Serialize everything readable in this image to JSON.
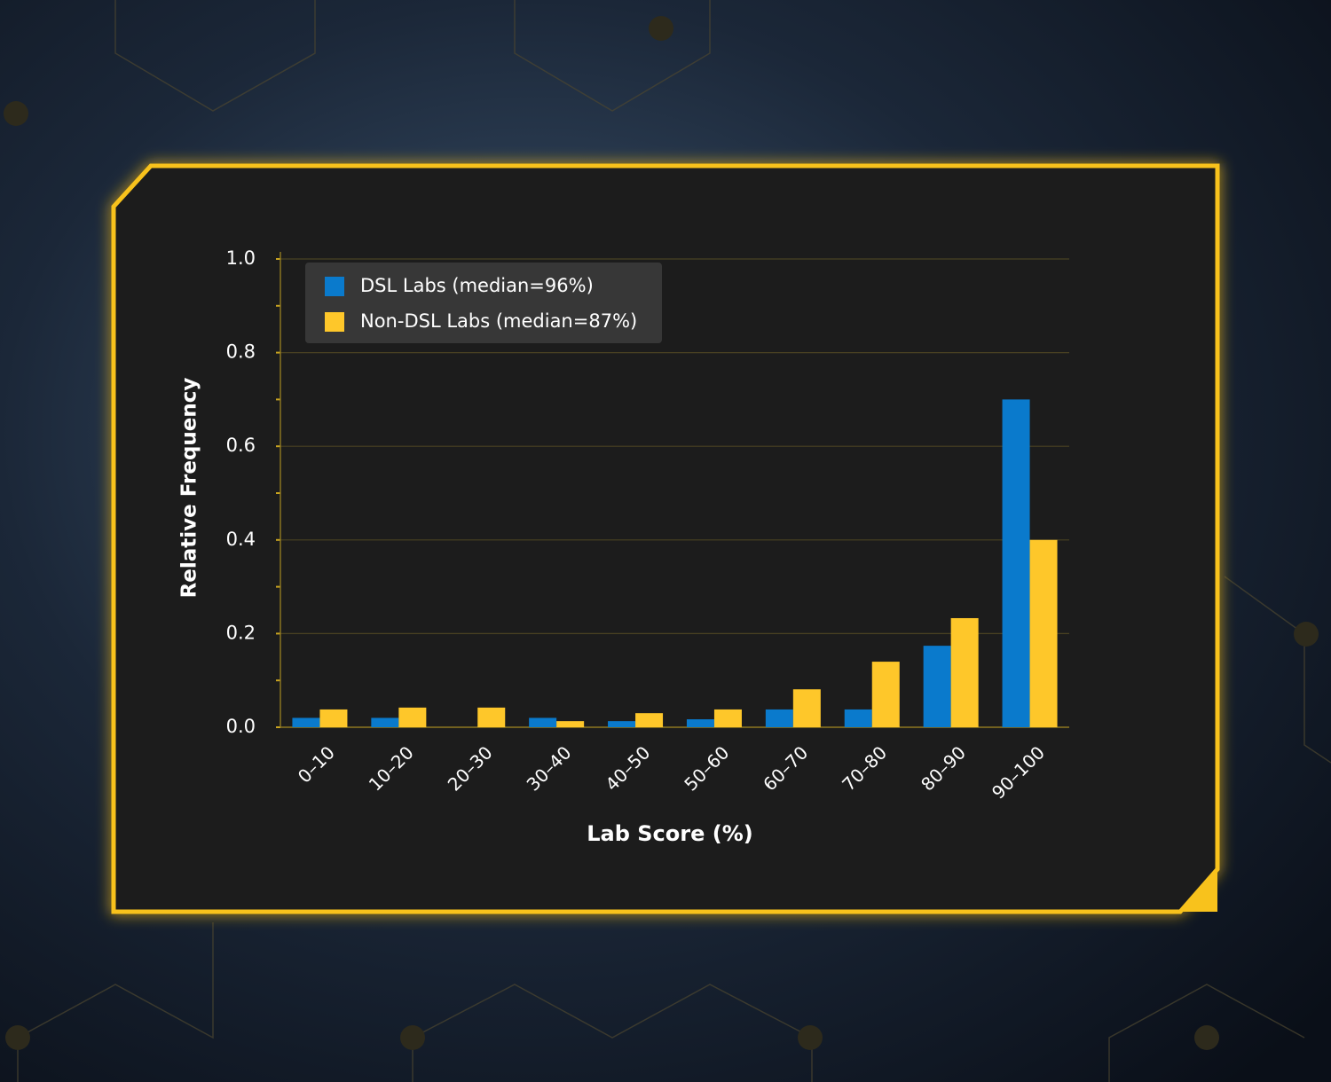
{
  "chart_data": {
    "type": "bar",
    "x_label": "Lab Score (%)",
    "y_label": "Relative Frequency",
    "categories": [
      "0–10",
      "10–20",
      "20–30",
      "30–40",
      "40–50",
      "50–60",
      "60–70",
      "70–80",
      "80–90",
      "90–100"
    ],
    "series": [
      {
        "name": "DSL Labs (median=96%)",
        "color": "#0a7acc",
        "values": [
          0.02,
          0.02,
          0,
          0.02,
          0.013,
          0.017,
          0.038,
          0.038,
          0.174,
          0.7
        ]
      },
      {
        "name": "Non-DSL Labs (median=87%)",
        "color": "#fec72a",
        "values": [
          0.038,
          0.042,
          0.042,
          0.013,
          0.03,
          0.038,
          0.081,
          0.14,
          0.233,
          0.4
        ]
      }
    ],
    "ylim": [
      0,
      1
    ],
    "yticks": [
      {
        "value": 0,
        "label": "0.0"
      },
      0.2,
      0.4,
      0.6,
      0.8,
      {
        "value": 1,
        "label": "1.0"
      }
    ],
    "yminorticks": [
      0.1,
      0.3,
      0.5,
      0.7,
      0.9
    ],
    "grid": true,
    "legend": "upper left"
  }
}
